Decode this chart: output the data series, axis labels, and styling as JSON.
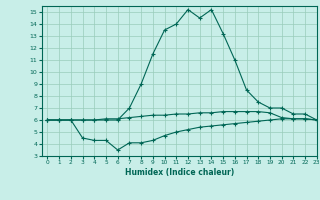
{
  "xlabel": "Humidex (Indice chaleur)",
  "xlim": [
    -0.5,
    23
  ],
  "ylim": [
    3,
    15.5
  ],
  "yticks": [
    3,
    4,
    5,
    6,
    7,
    8,
    9,
    10,
    11,
    12,
    13,
    14,
    15
  ],
  "xticks": [
    0,
    1,
    2,
    3,
    4,
    5,
    6,
    7,
    8,
    9,
    10,
    11,
    12,
    13,
    14,
    15,
    16,
    17,
    18,
    19,
    20,
    21,
    22,
    23
  ],
  "bg_color": "#c8eee8",
  "grid_color": "#99ccbb",
  "line_color": "#006655",
  "line1_x": [
    0,
    1,
    2,
    3,
    4,
    5,
    6,
    7,
    8,
    9,
    10,
    11,
    12,
    13,
    14,
    15,
    16,
    17,
    18,
    19,
    20,
    21,
    22,
    23
  ],
  "line1_y": [
    6.0,
    6.0,
    6.0,
    6.0,
    6.0,
    6.0,
    6.0,
    7.0,
    9.0,
    11.5,
    13.5,
    14.0,
    15.2,
    14.5,
    15.2,
    13.2,
    11.0,
    8.5,
    7.5,
    7.0,
    7.0,
    6.5,
    6.5,
    6.0
  ],
  "line2_x": [
    0,
    1,
    2,
    3,
    4,
    5,
    6,
    7,
    8,
    9,
    10,
    11,
    12,
    13,
    14,
    15,
    16,
    17,
    18,
    19,
    20,
    21,
    22,
    23
  ],
  "line2_y": [
    6.0,
    6.0,
    6.0,
    6.0,
    6.0,
    6.1,
    6.1,
    6.2,
    6.3,
    6.4,
    6.4,
    6.5,
    6.5,
    6.6,
    6.6,
    6.7,
    6.7,
    6.7,
    6.7,
    6.6,
    6.2,
    6.1,
    6.1,
    6.0
  ],
  "line3_x": [
    0,
    1,
    2,
    3,
    4,
    5,
    6,
    7,
    8,
    9,
    10,
    11,
    12,
    13,
    14,
    15,
    16,
    17,
    18,
    19,
    20,
    21,
    22,
    23
  ],
  "line3_y": [
    6.0,
    6.0,
    6.0,
    4.5,
    4.3,
    4.3,
    3.5,
    4.1,
    4.1,
    4.3,
    4.7,
    5.0,
    5.2,
    5.4,
    5.5,
    5.6,
    5.7,
    5.8,
    5.9,
    6.0,
    6.1,
    6.1,
    6.1,
    6.0
  ]
}
